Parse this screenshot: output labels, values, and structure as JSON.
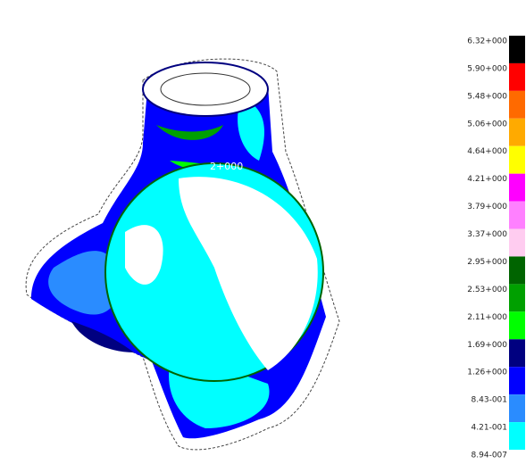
{
  "annotation": "2+000",
  "legend": {
    "labels": [
      "6.32+000",
      "5.90+000",
      "5.48+000",
      "5.06+000",
      "4.64+000",
      "4.21+000",
      "3.79+000",
      "3.37+000",
      "2.95+000",
      "2.53+000",
      "2.11+000",
      "1.69+000",
      "1.26+000",
      "8.43-001",
      "4.21-001",
      "8.94-007"
    ],
    "colors": [
      "#000000",
      "#ff0000",
      "#ff6a00",
      "#ffaa00",
      "#ffff00",
      "#ff00ff",
      "#ff80ff",
      "#ffccf0",
      "#006400",
      "#00a000",
      "#00ff00",
      "#000080",
      "#0000ff",
      "#2a8cff",
      "#00ffff"
    ]
  }
}
